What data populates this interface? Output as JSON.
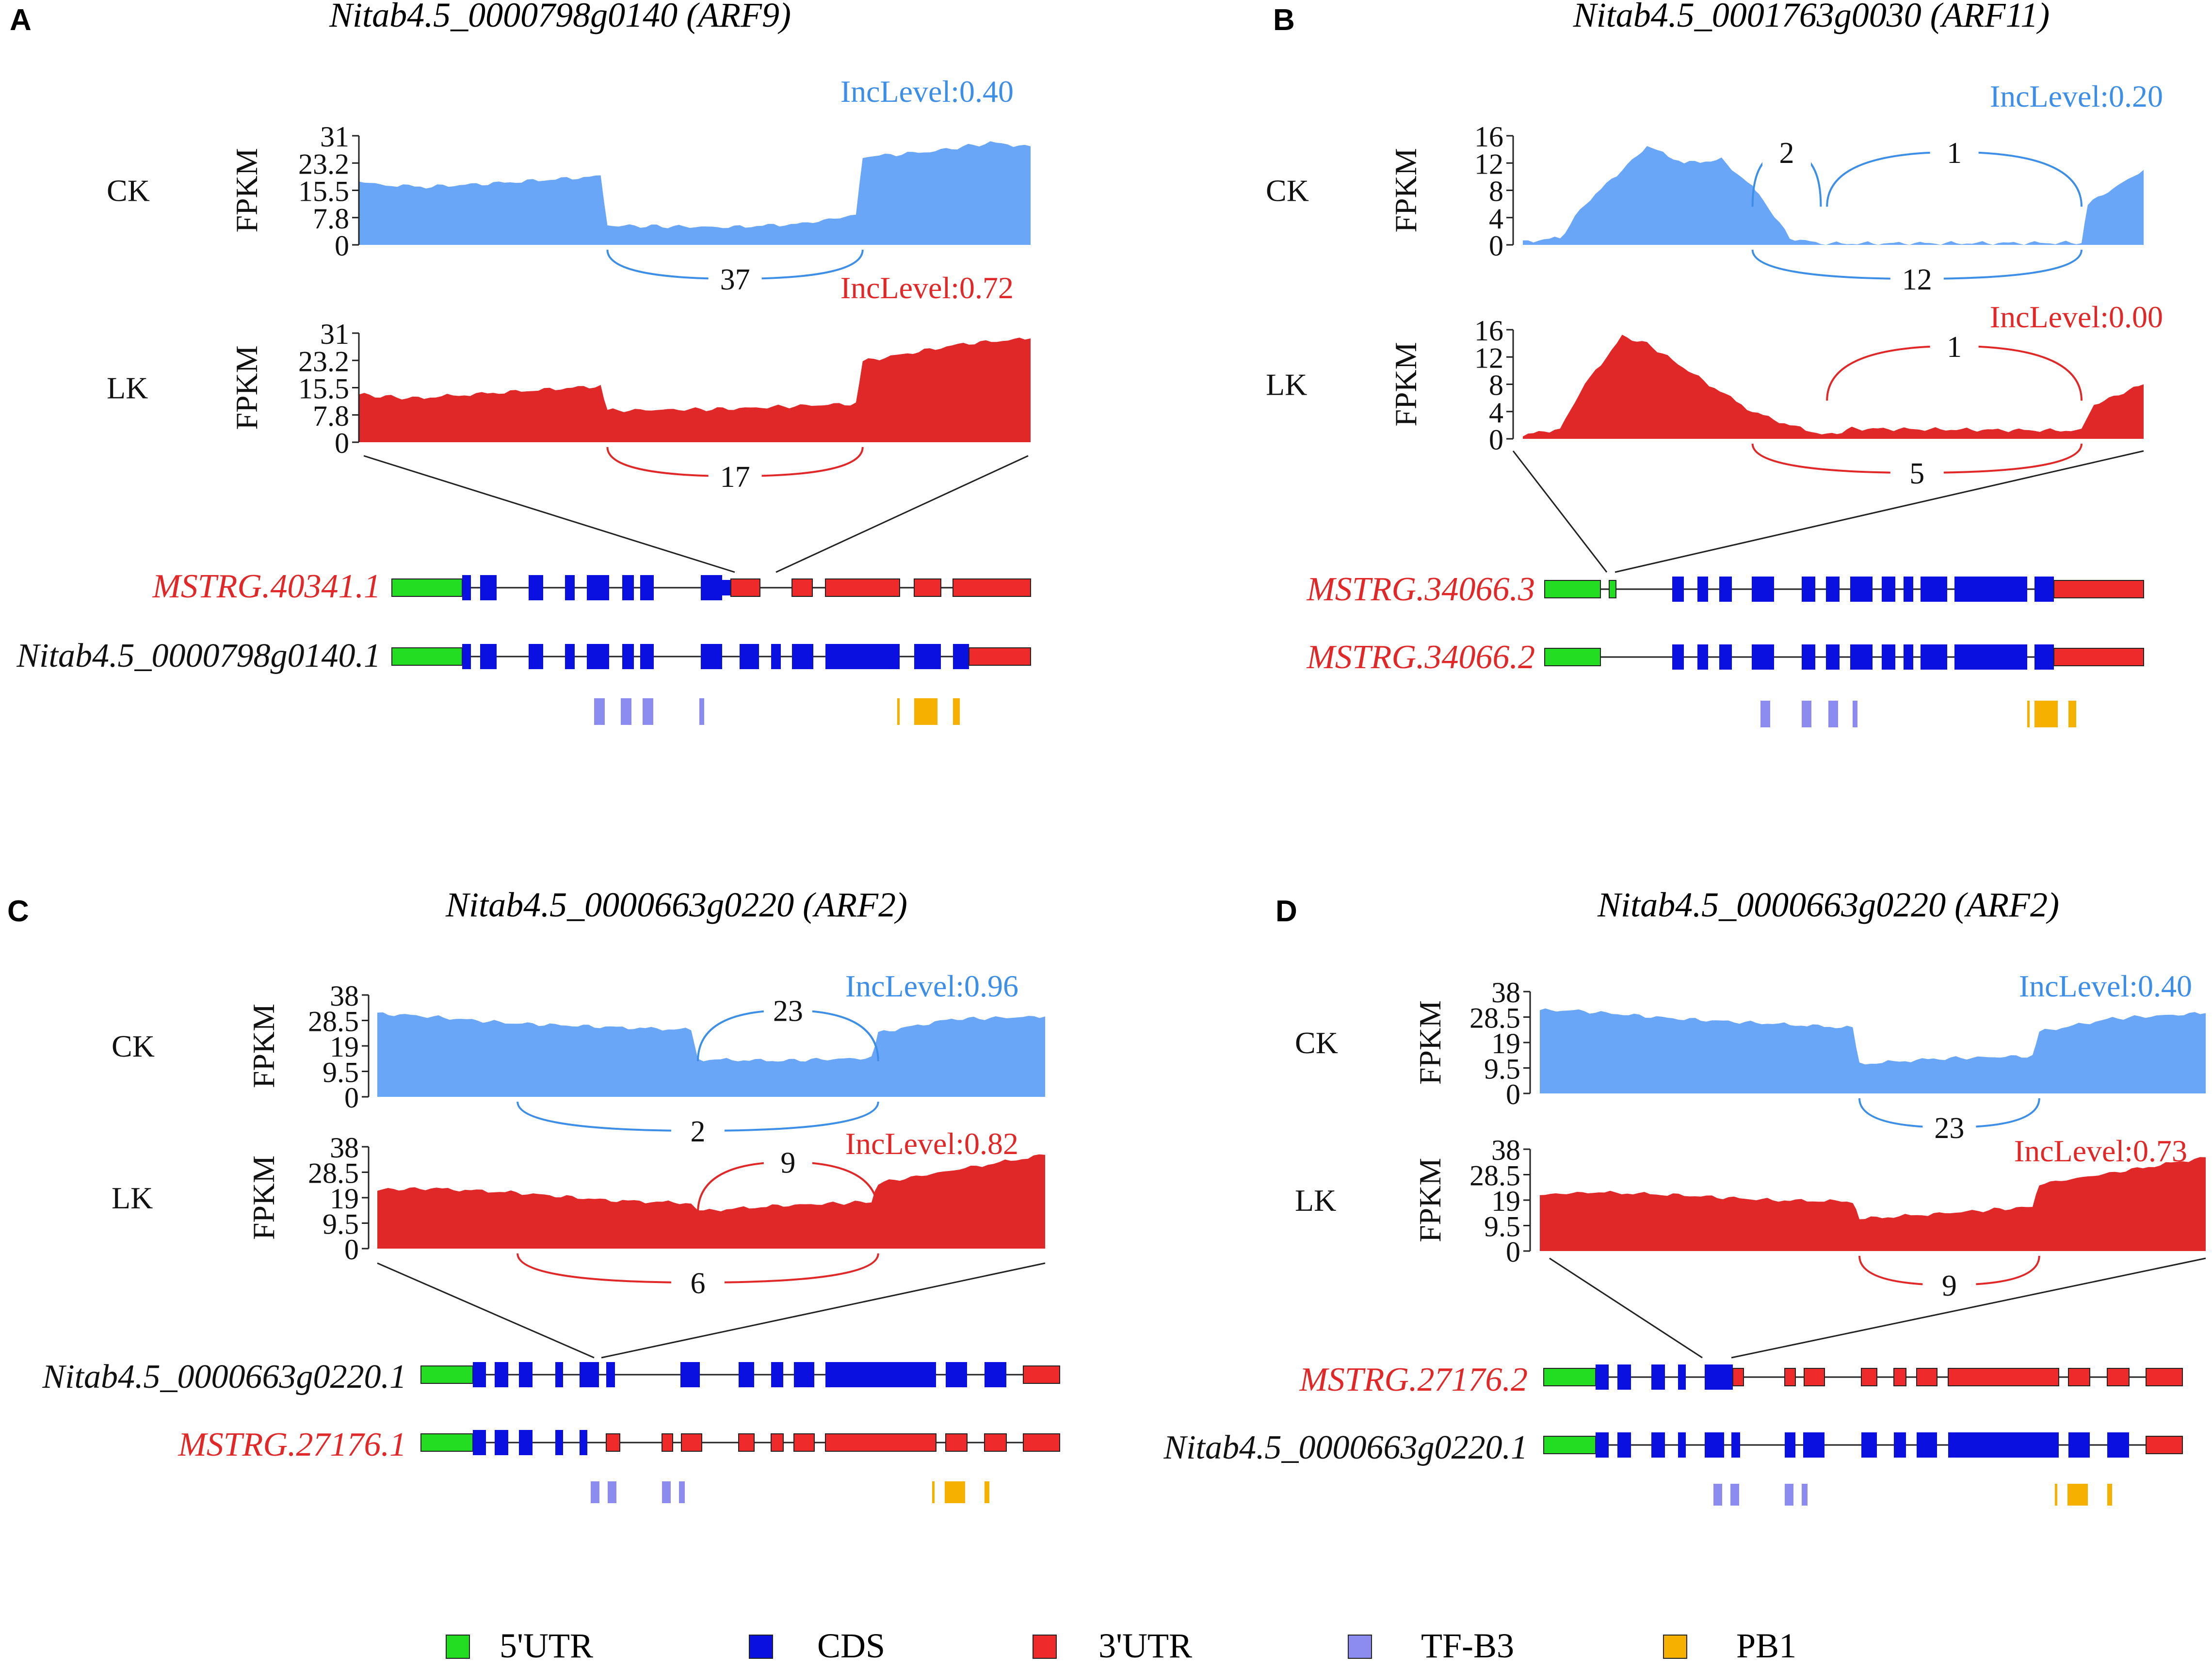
{
  "colors": {
    "ck": "#6aa6f8",
    "ck_text": "#3c8ee6",
    "lk": "#e02828",
    "lk_text": "#e02828",
    "utr5": "#22dd22",
    "cds": "#0a10e0",
    "utr3": "#ee2a2a",
    "tfb3": "#8c8cf0",
    "pb1": "#f5b000",
    "axis": "#222222"
  },
  "legend": [
    {
      "key": "utr5",
      "label": "5'UTR"
    },
    {
      "key": "cds",
      "label": "CDS"
    },
    {
      "key": "utr3",
      "label": "3'UTR"
    },
    {
      "key": "tfb3",
      "label": "TF-B3"
    },
    {
      "key": "pb1",
      "label": "PB1"
    }
  ],
  "chart_data": [
    {
      "panel": "A",
      "type": "area",
      "title": "Nitab4.5_0000798g0140 (ARF9)",
      "ylabel": "FPKM",
      "yticks": [
        "0",
        "7.8",
        "15.5",
        "23.2",
        "31"
      ],
      "ylim": [
        0,
        31
      ],
      "tracks": [
        {
          "name": "CK",
          "inclevel": "IncLevel:0.40",
          "profile": [
            [
              0,
              18
            ],
            [
              0.04,
              17
            ],
            [
              0.1,
              16.5
            ],
            [
              0.2,
              17.5
            ],
            [
              0.36,
              19.5
            ],
            [
              0.37,
              5.5
            ],
            [
              0.55,
              5
            ],
            [
              0.66,
              6
            ],
            [
              0.74,
              8.5
            ],
            [
              0.75,
              25
            ],
            [
              0.85,
              26.5
            ],
            [
              0.94,
              29
            ],
            [
              1,
              28
            ]
          ],
          "junctions": [
            {
              "label": "37",
              "from": 0.37,
              "to": 0.75,
              "side": "below"
            }
          ]
        },
        {
          "name": "LK",
          "inclevel": "IncLevel:0.72",
          "profile": [
            [
              0,
              13.5
            ],
            [
              0.08,
              12.5
            ],
            [
              0.2,
              14
            ],
            [
              0.36,
              16
            ],
            [
              0.37,
              9
            ],
            [
              0.55,
              9.5
            ],
            [
              0.74,
              11
            ],
            [
              0.75,
              23
            ],
            [
              0.9,
              28
            ],
            [
              1,
              29.5
            ]
          ],
          "junctions": [
            {
              "label": "17",
              "from": 0.37,
              "to": 0.75,
              "side": "below"
            }
          ]
        }
      ],
      "transcripts": [
        {
          "name": "MSTRG.40341.1",
          "name_color": "red"
        },
        {
          "name": "Nitab4.5_0000798g0140.1",
          "name_color": "black"
        }
      ],
      "domains": {
        "tfb3": 4,
        "pb1": 3
      }
    },
    {
      "panel": "B",
      "type": "area",
      "title": "Nitab4.5_0001763g0030 (ARF11)",
      "ylabel": "FPKM",
      "yticks": [
        "0",
        "4",
        "8",
        "12",
        "16"
      ],
      "ylim": [
        0,
        16
      ],
      "tracks": [
        {
          "name": "CK",
          "inclevel": "IncLevel:0.20",
          "profile": [
            [
              0,
              0.5
            ],
            [
              0.06,
              1
            ],
            [
              0.1,
              6
            ],
            [
              0.16,
              11
            ],
            [
              0.2,
              14.5
            ],
            [
              0.26,
              12
            ],
            [
              0.32,
              12.5
            ],
            [
              0.37,
              8.5
            ],
            [
              0.38,
              7.5
            ],
            [
              0.43,
              1
            ],
            [
              0.48,
              0.2
            ],
            [
              0.9,
              0.3
            ],
            [
              0.91,
              6
            ],
            [
              1,
              11
            ]
          ],
          "junctions": [
            {
              "label": "2",
              "from": 0.37,
              "to": 0.48,
              "side": "above"
            },
            {
              "label": "1",
              "from": 0.49,
              "to": 0.9,
              "side": "above"
            },
            {
              "label": "12",
              "from": 0.37,
              "to": 0.9,
              "side": "below"
            }
          ]
        },
        {
          "name": "LK",
          "inclevel": "IncLevel:0.00",
          "profile": [
            [
              0,
              0.5
            ],
            [
              0.06,
              1.5
            ],
            [
              0.1,
              8
            ],
            [
              0.16,
              15
            ],
            [
              0.2,
              14
            ],
            [
              0.3,
              8
            ],
            [
              0.37,
              4
            ],
            [
              0.43,
              2
            ],
            [
              0.49,
              0.5
            ],
            [
              0.53,
              1.5
            ],
            [
              0.9,
              1.2
            ],
            [
              0.92,
              5
            ],
            [
              1,
              8
            ]
          ],
          "junctions": [
            {
              "label": "1",
              "from": 0.49,
              "to": 0.9,
              "side": "above"
            },
            {
              "label": "5",
              "from": 0.37,
              "to": 0.9,
              "side": "below"
            }
          ]
        }
      ],
      "transcripts": [
        {
          "name": "MSTRG.34066.3",
          "name_color": "red"
        },
        {
          "name": "MSTRG.34066.2",
          "name_color": "red"
        }
      ],
      "domains": {
        "tfb3": 4,
        "pb1": 3
      }
    },
    {
      "panel": "C",
      "type": "area",
      "title": "Nitab4.5_0000663g0220 (ARF2)",
      "ylabel": "FPKM",
      "yticks": [
        "0",
        "9.5",
        "19",
        "28.5",
        "38"
      ],
      "ylim": [
        0,
        38
      ],
      "tracks": [
        {
          "name": "CK",
          "inclevel": "IncLevel:0.96",
          "profile": [
            [
              0,
              31
            ],
            [
              0.05,
              30.5
            ],
            [
              0.2,
              27.5
            ],
            [
              0.35,
              26
            ],
            [
              0.47,
              25
            ],
            [
              0.48,
              14
            ],
            [
              0.6,
              13.5
            ],
            [
              0.74,
              14.5
            ],
            [
              0.75,
              24
            ],
            [
              0.86,
              29
            ],
            [
              1,
              30
            ]
          ],
          "junctions": [
            {
              "label": "23",
              "from": 0.48,
              "to": 0.75,
              "side": "above"
            },
            {
              "label": "2",
              "from": 0.21,
              "to": 0.75,
              "side": "below"
            }
          ]
        },
        {
          "name": "LK",
          "inclevel": "IncLevel:0.82",
          "profile": [
            [
              0,
              22
            ],
            [
              0.08,
              22.5
            ],
            [
              0.2,
              21
            ],
            [
              0.35,
              18
            ],
            [
              0.47,
              17
            ],
            [
              0.48,
              14
            ],
            [
              0.6,
              16
            ],
            [
              0.74,
              17.5
            ],
            [
              0.75,
              24.5
            ],
            [
              0.88,
              30
            ],
            [
              1,
              35
            ]
          ],
          "junctions": [
            {
              "label": "9",
              "from": 0.48,
              "to": 0.75,
              "side": "above"
            },
            {
              "label": "6",
              "from": 0.21,
              "to": 0.75,
              "side": "below"
            }
          ]
        }
      ],
      "transcripts": [
        {
          "name": "Nitab4.5_0000663g0220.1",
          "name_color": "black"
        },
        {
          "name": "MSTRG.27176.1",
          "name_color": "red"
        }
      ],
      "domains": {
        "tfb3": 4,
        "pb1": 3
      }
    },
    {
      "panel": "D",
      "type": "area",
      "title": "Nitab4.5_0000663g0220 (ARF2)",
      "ylabel": "FPKM",
      "yticks": [
        "0",
        "9.5",
        "19",
        "28.5",
        "38"
      ],
      "ylim": [
        0,
        38
      ],
      "tracks": [
        {
          "name": "CK",
          "inclevel": "IncLevel:0.40",
          "profile": [
            [
              0,
              31
            ],
            [
              0.05,
              31
            ],
            [
              0.2,
              28
            ],
            [
              0.35,
              26
            ],
            [
              0.47,
              24.5
            ],
            [
              0.48,
              11
            ],
            [
              0.6,
              13
            ],
            [
              0.74,
              14
            ],
            [
              0.75,
              23
            ],
            [
              0.86,
              28
            ],
            [
              1,
              30
            ]
          ],
          "junctions": [
            {
              "label": "23",
              "from": 0.48,
              "to": 0.75,
              "side": "below"
            }
          ]
        },
        {
          "name": "LK",
          "inclevel": "IncLevel:0.73",
          "profile": [
            [
              0,
              21
            ],
            [
              0.08,
              22
            ],
            [
              0.2,
              21
            ],
            [
              0.35,
              19
            ],
            [
              0.47,
              18.5
            ],
            [
              0.48,
              12
            ],
            [
              0.6,
              14
            ],
            [
              0.74,
              16.5
            ],
            [
              0.75,
              25
            ],
            [
              0.88,
              30
            ],
            [
              1,
              35
            ]
          ],
          "junctions": [
            {
              "label": "9",
              "from": 0.48,
              "to": 0.75,
              "side": "below"
            }
          ]
        }
      ],
      "transcripts": [
        {
          "name": "MSTRG.27176.2",
          "name_color": "red"
        },
        {
          "name": "Nitab4.5_0000663g0220.1",
          "name_color": "black"
        }
      ],
      "domains": {
        "tfb3": 4,
        "pb1": 3
      }
    }
  ]
}
